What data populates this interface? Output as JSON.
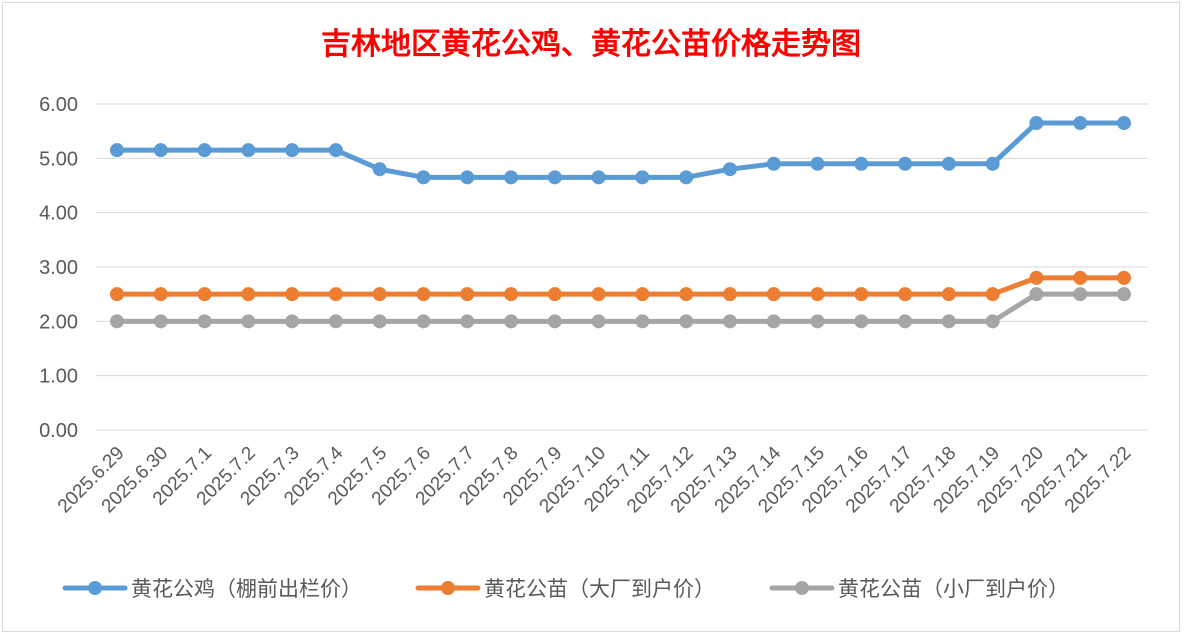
{
  "chart_data": {
    "type": "line",
    "title": "吉林地区黄花公鸡、黄花公苗价格走势图",
    "categories": [
      "2025.6.29",
      "2025.6.30",
      "2025.7.1",
      "2025.7.2",
      "2025.7.3",
      "2025.7.4",
      "2025.7.5",
      "2025.7.6",
      "2025.7.7",
      "2025.7.8",
      "2025.7.9",
      "2025.7.10",
      "2025.7.11",
      "2025.7.12",
      "2025.7.13",
      "2025.7.14",
      "2025.7.15",
      "2025.7.16",
      "2025.7.17",
      "2025.7.18",
      "2025.7.19",
      "2025.7.20",
      "2025.7.21",
      "2025.7.22"
    ],
    "yticks": [
      "0.00",
      "1.00",
      "2.00",
      "3.00",
      "4.00",
      "5.00",
      "6.00"
    ],
    "ylim": [
      0,
      6
    ],
    "grid": true,
    "legend_position": "bottom",
    "series": [
      {
        "name": "黄花公鸡（棚前出栏价）",
        "color": "#5b9bd5",
        "values": [
          5.15,
          5.15,
          5.15,
          5.15,
          5.15,
          5.15,
          4.8,
          4.65,
          4.65,
          4.65,
          4.65,
          4.65,
          4.65,
          4.65,
          4.8,
          4.9,
          4.9,
          4.9,
          4.9,
          4.9,
          4.9,
          5.65,
          5.65,
          5.65
        ]
      },
      {
        "name": "黄花公苗（大厂到户价）",
        "color": "#ed7d31",
        "values": [
          2.5,
          2.5,
          2.5,
          2.5,
          2.5,
          2.5,
          2.5,
          2.5,
          2.5,
          2.5,
          2.5,
          2.5,
          2.5,
          2.5,
          2.5,
          2.5,
          2.5,
          2.5,
          2.5,
          2.5,
          2.5,
          2.8,
          2.8,
          2.8
        ]
      },
      {
        "name": "黄花公苗（小厂到户价）",
        "color": "#a5a5a5",
        "values": [
          2.0,
          2.0,
          2.0,
          2.0,
          2.0,
          2.0,
          2.0,
          2.0,
          2.0,
          2.0,
          2.0,
          2.0,
          2.0,
          2.0,
          2.0,
          2.0,
          2.0,
          2.0,
          2.0,
          2.0,
          2.0,
          2.5,
          2.5,
          2.5
        ]
      }
    ]
  }
}
